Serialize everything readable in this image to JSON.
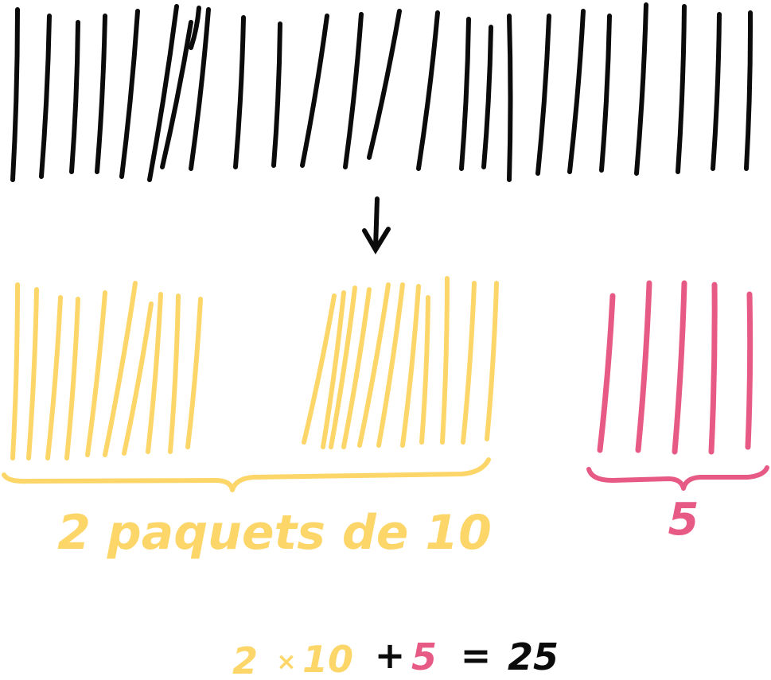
{
  "colors": {
    "ink": "#0b0b0b",
    "tens": "#fdd66a",
    "units": "#e75a85",
    "background": "#ffffff"
  },
  "total_sticks": 25,
  "groups": {
    "tens": {
      "packets": 2,
      "per_packet": 10
    },
    "units": {
      "count": 5
    }
  },
  "labels": {
    "tens_label": "2 paquets de 10",
    "units_label": "5"
  },
  "equation": {
    "a": "2",
    "times": "×",
    "b": "10",
    "plus": "+",
    "c": "5",
    "equals": "=",
    "result": "25"
  },
  "icons": {
    "arrow": "down-arrow-icon",
    "brace": "curly-brace-icon"
  }
}
